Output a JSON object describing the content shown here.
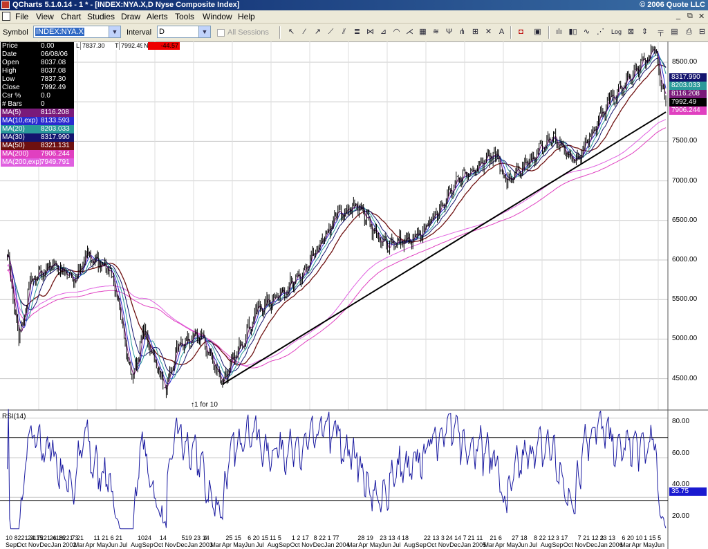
{
  "window": {
    "title": "QCharts 5.1.0.14 - 1 * - [INDEX:NYA.X,D Nyse Composite Index]",
    "copyright": "© 2006 Quote LLC",
    "controls": [
      "_",
      "⧉",
      "✕"
    ]
  },
  "menu": [
    "File",
    "View",
    "Chart",
    "Studies",
    "Draw",
    "Alerts",
    "Tools",
    "Window",
    "Help"
  ],
  "toolbar": {
    "symbol_label": "Symbol",
    "symbol_value": "INDEX:NYA.X",
    "interval_label": "Interval",
    "interval_value": "D",
    "sessions_label": "All Sessions"
  },
  "colors": {
    "ma5": "#7a1a7a",
    "ma10exp": "#2a2ad0",
    "ma20": "#2a9a9a",
    "ma30": "#14146e",
    "ma50": "#6e1010",
    "ma200": "#e040c0",
    "ma200exp": "#e060e0",
    "rsi": "#1a1aa0",
    "price": "#000000",
    "last": "#000000"
  },
  "info_panel": [
    {
      "label": "Price",
      "value": "0.00",
      "bg": "#000000"
    },
    {
      "label": "Date",
      "value": "06/08/06",
      "bg": "#000000"
    },
    {
      "label": "Open",
      "value": "8037.08",
      "bg": "#000000"
    },
    {
      "label": "High",
      "value": "8037.08",
      "bg": "#000000"
    },
    {
      "label": "Low",
      "value": "7837.30",
      "bg": "#000000"
    },
    {
      "label": "Close",
      "value": "7992.49",
      "bg": "#000000"
    },
    {
      "label": "Csr %",
      "value": "0.0",
      "bg": "#000000"
    },
    {
      "label": "# Bars",
      "value": "0",
      "bg": "#000000"
    },
    {
      "label": "MA(5)",
      "value": "8116.208",
      "bg": "#7a1a7a"
    },
    {
      "label": "MA(10,exp)",
      "value": "8133.593",
      "bg": "#2a2ad0"
    },
    {
      "label": "MA(20)",
      "value": "8203.033",
      "bg": "#2a9a9a"
    },
    {
      "label": "MA(30)",
      "value": "8317.990",
      "bg": "#14146e"
    },
    {
      "label": "MA(50)",
      "value": "8321.131",
      "bg": "#6e1010"
    },
    {
      "label": "MA(200)",
      "value": "7906.244",
      "bg": "#e040c0"
    },
    {
      "label": "MA(200,exp)",
      "value": "7949.791",
      "bg": "#e060e0"
    }
  ],
  "quote_strip": {
    "l_label": "L",
    "l_value": "7837.30",
    "t_label": "T",
    "t_value": "7992.49",
    "n_label": "N",
    "n_value": "-44.57"
  },
  "annotation": "↑1 for 10",
  "rsi_label": "RSI(14)",
  "chart_data": {
    "type": "line",
    "symbol": "INDEX:NYA.X",
    "price_ticks": [
      "8500.00",
      "8000.00",
      "7500.00",
      "7000.00",
      "6500.00",
      "6000.00",
      "5500.00",
      "5000.00",
      "4500.00"
    ],
    "price_right_labels": [
      {
        "text": "8317.990",
        "bg": "#14146e",
        "fg": "#ffffff"
      },
      {
        "text": "8203.033",
        "bg": "#2a9a9a",
        "fg": "#ffffff"
      },
      {
        "text": "8116.208",
        "bg": "#7a1a7a",
        "fg": "#ffffff"
      },
      {
        "text": "7992.49",
        "bg": "#000000",
        "fg": "#ffffff"
      },
      {
        "text": "7906.244",
        "bg": "#e040c0",
        "fg": "#ffffff"
      }
    ],
    "rsi_ticks": [
      "80.00",
      "60.00",
      "40.00",
      "20.00"
    ],
    "rsi_last": "35.75",
    "rsi_lines": [
      70,
      30
    ],
    "trendline": {
      "from": {
        "date": "2003-03",
        "value": 4430
      },
      "to": {
        "date": "2006-06",
        "value": 7870
      }
    },
    "price_path": [
      {
        "date": "2001-08",
        "value": 6100
      },
      {
        "date": "2001-09",
        "value": 4950
      },
      {
        "date": "2001-10",
        "value": 5700
      },
      {
        "date": "2001-12",
        "value": 5950
      },
      {
        "date": "2002-02",
        "value": 5750
      },
      {
        "date": "2002-03",
        "value": 6050
      },
      {
        "date": "2002-05",
        "value": 5900
      },
      {
        "date": "2002-06",
        "value": 5300
      },
      {
        "date": "2002-07",
        "value": 4450
      },
      {
        "date": "2002-08",
        "value": 5100
      },
      {
        "date": "2002-10",
        "value": 4350
      },
      {
        "date": "2002-11",
        "value": 4900
      },
      {
        "date": "2003-01",
        "value": 5050
      },
      {
        "date": "2003-03",
        "value": 4450
      },
      {
        "date": "2003-06",
        "value": 5350
      },
      {
        "date": "2003-10",
        "value": 5800
      },
      {
        "date": "2004-01",
        "value": 6550
      },
      {
        "date": "2004-03",
        "value": 6700
      },
      {
        "date": "2004-05",
        "value": 6200
      },
      {
        "date": "2004-08",
        "value": 6250
      },
      {
        "date": "2004-12",
        "value": 7050
      },
      {
        "date": "2005-03",
        "value": 7350
      },
      {
        "date": "2005-04",
        "value": 6950
      },
      {
        "date": "2005-08",
        "value": 7550
      },
      {
        "date": "2005-10",
        "value": 7250
      },
      {
        "date": "2006-01",
        "value": 8000
      },
      {
        "date": "2006-05",
        "value": 8650
      },
      {
        "date": "2006-06",
        "value": 7992.49
      }
    ],
    "x_axis_labels": [
      "10 8221 317221 418221 3",
      "24 15",
      "26 16",
      "7 21",
      "11 21 6",
      "21",
      "1024",
      "14",
      "519 23 14",
      "4",
      "25 15",
      "6 20 15",
      "11 5",
      "1 2 17",
      "8 22 1 7",
      "7",
      "28 19",
      "23 13 4",
      "18",
      "22 13 3",
      "24 14 7",
      "21 11",
      "21 6",
      "27 18",
      "8 22 12",
      "3 17",
      "7 21 12 3",
      "23 13",
      "6 20 10",
      "1 15 5"
    ],
    "x_axis_months": [
      "Sept",
      "Oct",
      "Nov",
      "Dec",
      "Jan",
      "2002",
      "Mar",
      "Apr",
      "May",
      "Jun",
      "Jul",
      "Aug",
      "Sep",
      "Oct",
      "Nov",
      "Dec",
      "Jan",
      "2003",
      "Mar",
      "Apr",
      "May",
      "Jun",
      "Jul",
      "Aug",
      "Sep",
      "Oct",
      "Nov",
      "Dec",
      "Jan",
      "2004",
      "Mar",
      "Apr",
      "May",
      "Jun",
      "Jul",
      "Aug",
      "Sep",
      "Oct",
      "Nov",
      "Dec",
      "Jan",
      "2005",
      "Mar",
      "Apr",
      "May",
      "Jun",
      "Jul",
      "Aug",
      "Sep",
      "Oct",
      "Nov",
      "Dec",
      "Jan",
      "2006",
      "Mar",
      "Apr",
      "May",
      "Jun"
    ],
    "grid": true,
    "ma_legend": [
      "MA(5)",
      "MA(10,exp)",
      "MA(20)",
      "MA(30)",
      "MA(50)",
      "MA(200)",
      "MA(200,exp)"
    ]
  }
}
